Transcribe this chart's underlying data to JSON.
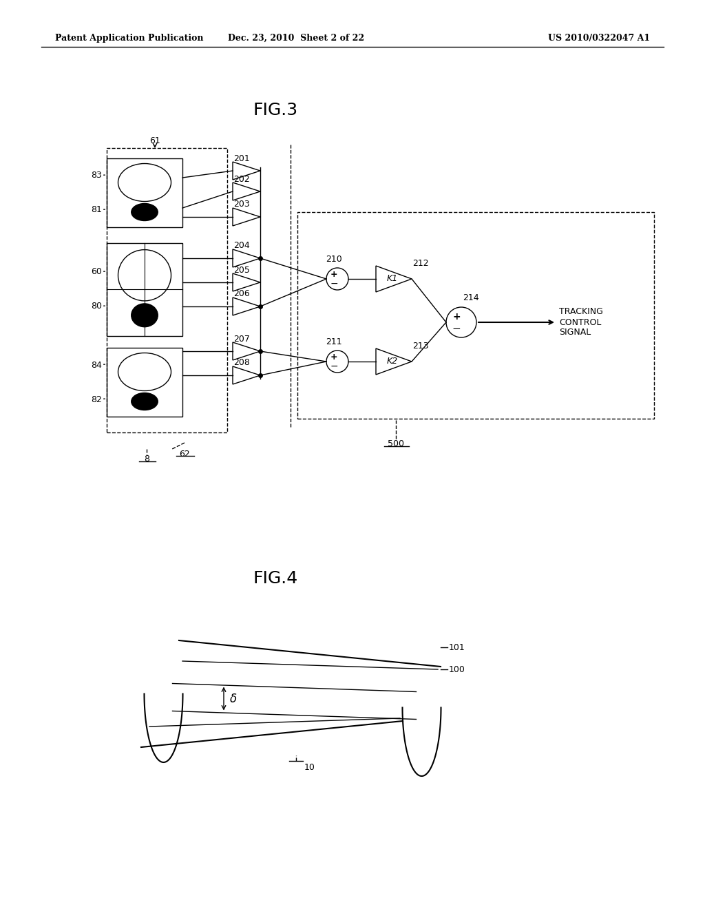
{
  "bg_color": "#ffffff",
  "header_left": "Patent Application Publication",
  "header_mid": "Dec. 23, 2010  Sheet 2 of 22",
  "header_right": "US 2010/0322047 A1",
  "fig3_title": "FIG.3",
  "fig4_title": "FIG.4",
  "amp_labels": [
    "201",
    "202",
    "203",
    "204",
    "205",
    "206",
    "207",
    "208"
  ],
  "sensor_labels_left": [
    "83",
    "81",
    "60",
    "80",
    "84",
    "82"
  ],
  "misc_labels": [
    "61",
    "62",
    "8",
    "500",
    "210",
    "211",
    "212",
    "213",
    "214",
    "K1",
    "K2",
    "TRACKING\nCONTROL\nSIGNAL",
    "101",
    "100",
    "10"
  ]
}
